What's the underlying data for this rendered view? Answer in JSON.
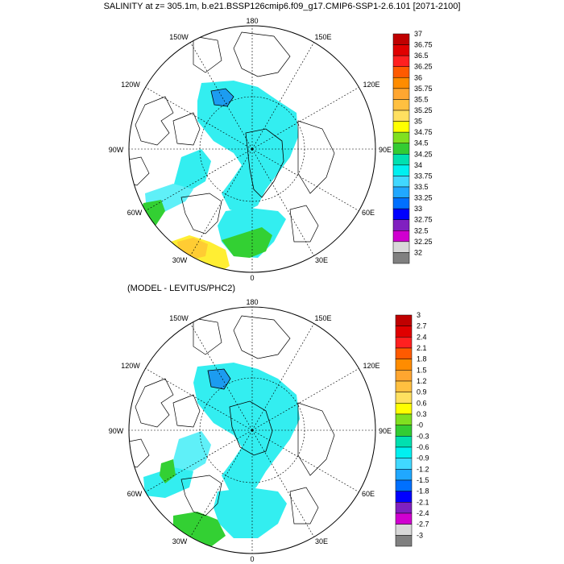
{
  "title": "SALINITY at z= 305.1m, b.e21.BSSP126cmip6.f09_g17.CMIP6-SSP1-2.6.101 [2071-2100]",
  "subtitle": "(MODEL - LEVITUS/PHC2)",
  "longitude_labels": {
    "north": "180",
    "nw150": "150W",
    "ne150": "150E",
    "nw120": "120W",
    "ne120": "120E",
    "w90": "90W",
    "e90": "90E",
    "sw60": "60W",
    "se60": "60E",
    "sw30": "30W",
    "se30": "30E",
    "south": "0"
  },
  "colorbar_top": {
    "labels": [
      "37",
      "36.75",
      "36.5",
      "36.25",
      "36",
      "35.75",
      "35.5",
      "35.25",
      "35",
      "34.75",
      "34.5",
      "34.25",
      "34",
      "33.75",
      "33.5",
      "33.25",
      "33",
      "32.75",
      "32.5",
      "32.25",
      "32"
    ],
    "colors": [
      "#c00000",
      "#e00000",
      "#ff2020",
      "#ff5a00",
      "#ff8c00",
      "#ffa630",
      "#ffc040",
      "#ffe060",
      "#ffff00",
      "#80e020",
      "#33cc33",
      "#00e0b0",
      "#00f0f0",
      "#40d8ff",
      "#20a8ff",
      "#0070ff",
      "#0000ff",
      "#8020c0",
      "#d000d0",
      "#d8d8d8",
      "#808080"
    ]
  },
  "colorbar_bottom": {
    "labels": [
      "3",
      "2.7",
      "2.4",
      "2.1",
      "1.8",
      "1.5",
      "1.2",
      "0.9",
      "0.6",
      "0.3",
      "-0",
      "-0.3",
      "-0.6",
      "-0.9",
      "-1.2",
      "-1.5",
      "-1.8",
      "-2.1",
      "-2.4",
      "-2.7",
      "-3"
    ],
    "colors": [
      "#c00000",
      "#e00000",
      "#ff2020",
      "#ff5a00",
      "#ff8c00",
      "#ffa630",
      "#ffc040",
      "#ffe060",
      "#ffff00",
      "#80e020",
      "#33cc33",
      "#00e0b0",
      "#00f0f0",
      "#40d8ff",
      "#20a8ff",
      "#0070ff",
      "#0000ff",
      "#8020c0",
      "#d000d0",
      "#d8d8d8",
      "#808080"
    ]
  },
  "fill_colors": {
    "ocean_main": "#33eef0",
    "ocean_light": "#5ff0f8",
    "dark_blue": "#1c9cf0",
    "green": "#33d033",
    "yellow": "#ffee33",
    "orange": "#ffcc33"
  }
}
